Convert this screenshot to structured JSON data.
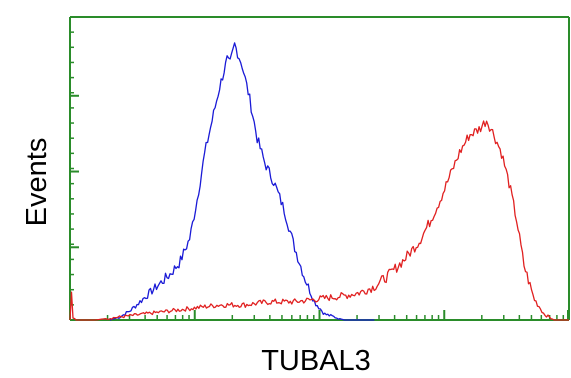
{
  "chart_data": {
    "type": "line",
    "title": "",
    "xlabel": "TUBAL3",
    "ylabel": "Events",
    "x_scale": "log",
    "x_tick_labels": [],
    "y_tick_labels": [],
    "xlim": [
      0,
      1
    ],
    "ylim": [
      0,
      1
    ],
    "grid": false,
    "legend": "none",
    "axis_color": "#2a8c2a",
    "series": [
      {
        "color": "#1a1ad6",
        "x": [
          0.08,
          0.1,
          0.12,
          0.14,
          0.16,
          0.18,
          0.2,
          0.22,
          0.24,
          0.255,
          0.27,
          0.285,
          0.3,
          0.315,
          0.32,
          0.33,
          0.345,
          0.36,
          0.375,
          0.39,
          0.41,
          0.43,
          0.45,
          0.47,
          0.49,
          0.51,
          0.53,
          0.55,
          0.58,
          0.61
        ],
        "y": [
          0.0,
          0.01,
          0.03,
          0.06,
          0.09,
          0.12,
          0.15,
          0.19,
          0.27,
          0.4,
          0.55,
          0.66,
          0.77,
          0.86,
          0.84,
          0.91,
          0.84,
          0.73,
          0.6,
          0.52,
          0.45,
          0.36,
          0.24,
          0.14,
          0.06,
          0.02,
          0.01,
          0.0,
          0.0,
          0.0
        ]
      },
      {
        "color": "#e02020",
        "x": [
          0.0,
          0.004,
          0.006,
          0.012,
          0.05,
          0.1,
          0.15,
          0.2,
          0.25,
          0.3,
          0.35,
          0.4,
          0.45,
          0.5,
          0.55,
          0.58,
          0.61,
          0.64,
          0.67,
          0.7,
          0.72,
          0.74,
          0.76,
          0.78,
          0.8,
          0.82,
          0.835,
          0.85,
          0.865,
          0.88,
          0.895,
          0.91,
          0.93,
          0.95,
          0.97,
          1.0
        ],
        "y": [
          0.0,
          0.11,
          0.01,
          0.0,
          0.0,
          0.01,
          0.02,
          0.03,
          0.04,
          0.05,
          0.05,
          0.06,
          0.06,
          0.07,
          0.08,
          0.09,
          0.11,
          0.15,
          0.2,
          0.26,
          0.32,
          0.39,
          0.47,
          0.55,
          0.61,
          0.63,
          0.66,
          0.61,
          0.55,
          0.45,
          0.33,
          0.18,
          0.07,
          0.02,
          0.0,
          0.0
        ]
      }
    ]
  }
}
